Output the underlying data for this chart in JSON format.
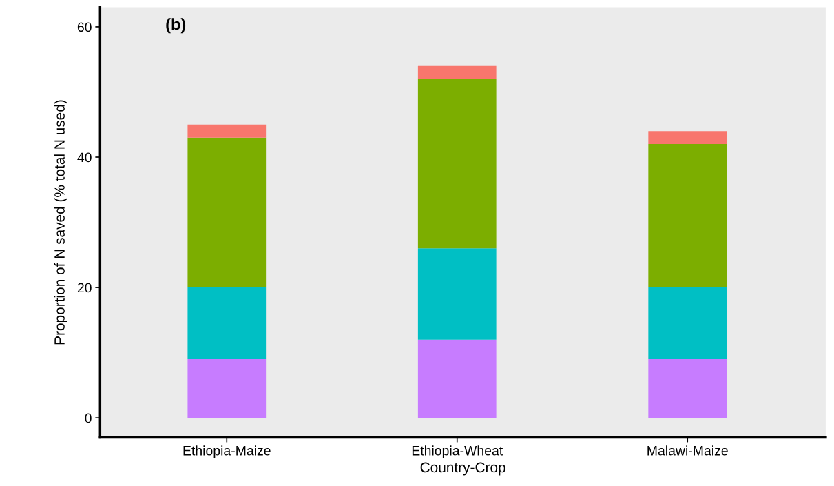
{
  "chart_data": {
    "type": "bar",
    "stacked": true,
    "xlabel": "Country-Crop",
    "ylabel": "Proportion of N saved (% total N used)",
    "annotations": [
      "(b)"
    ],
    "categories": [
      "Ethiopia-Maize",
      "Ethiopia-Wheat",
      "Malawi-Maize"
    ],
    "series": [
      {
        "color": "#c77cff",
        "values": [
          9,
          12,
          9
        ]
      },
      {
        "color": "#00bfc4",
        "values": [
          11,
          14,
          11
        ]
      },
      {
        "color": "#7cae00",
        "values": [
          23,
          26,
          22
        ]
      },
      {
        "color": "#f8766d",
        "values": [
          2,
          2,
          2
        ]
      }
    ],
    "ylim": [
      -3,
      63
    ],
    "yticks": [
      0,
      20,
      40,
      60
    ],
    "grid": false,
    "legend": false
  }
}
